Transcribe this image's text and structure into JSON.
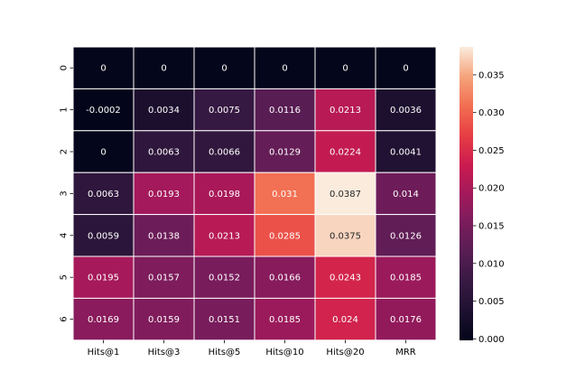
{
  "chart_data": {
    "type": "heatmap",
    "title": "",
    "xlabel": "",
    "ylabel": "",
    "x_categories": [
      "Hits@1",
      "Hits@3",
      "Hits@5",
      "Hits@10",
      "Hits@20",
      "MRR"
    ],
    "y_categories": [
      "0",
      "1",
      "2",
      "3",
      "4",
      "5",
      "6"
    ],
    "values": [
      [
        0,
        0,
        0,
        0,
        0,
        0
      ],
      [
        -0.0002,
        0.0034,
        0.0075,
        0.0116,
        0.0213,
        0.0036
      ],
      [
        0,
        0.0063,
        0.0066,
        0.0129,
        0.0224,
        0.0041
      ],
      [
        0.0063,
        0.0193,
        0.0198,
        0.031,
        0.0387,
        0.014
      ],
      [
        0.0059,
        0.0138,
        0.0213,
        0.0285,
        0.0375,
        0.0126
      ],
      [
        0.0195,
        0.0157,
        0.0152,
        0.0166,
        0.0243,
        0.0185
      ],
      [
        0.0169,
        0.0159,
        0.0151,
        0.0185,
        0.024,
        0.0176
      ]
    ],
    "cell_labels": [
      [
        "0",
        "0",
        "0",
        "0",
        "0",
        "0"
      ],
      [
        "-0.0002",
        "0.0034",
        "0.0075",
        "0.0116",
        "0.0213",
        "0.0036"
      ],
      [
        "0",
        "0.0063",
        "0.0066",
        "0.0129",
        "0.0224",
        "0.0041"
      ],
      [
        "0.0063",
        "0.0193",
        "0.0198",
        "0.031",
        "0.0387",
        "0.014"
      ],
      [
        "0.0059",
        "0.0138",
        "0.0213",
        "0.0285",
        "0.0375",
        "0.0126"
      ],
      [
        "0.0195",
        "0.0157",
        "0.0152",
        "0.0166",
        "0.0243",
        "0.0185"
      ],
      [
        "0.0169",
        "0.0159",
        "0.0151",
        "0.0185",
        "0.024",
        "0.0176"
      ]
    ],
    "color_range": [
      -0.0002,
      0.0387
    ],
    "colormap": "rocket",
    "colorbar": {
      "ticks": [
        0,
        0.005,
        0.01,
        0.015,
        0.02,
        0.025,
        0.03,
        0.035
      ],
      "tick_labels": [
        "0.000",
        "0.005",
        "0.010",
        "0.015",
        "0.020",
        "0.025",
        "0.030",
        "0.035"
      ]
    },
    "grid": false,
    "legend": "colorbar-right",
    "cell_border_color": "#ffffff"
  }
}
